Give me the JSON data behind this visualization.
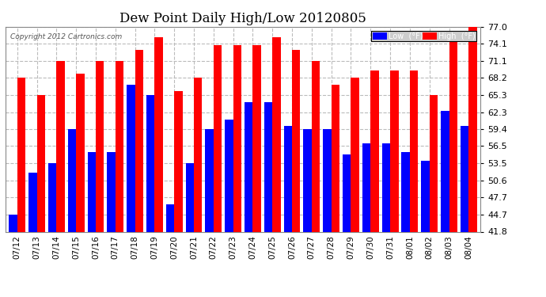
{
  "title": "Dew Point Daily High/Low 20120805",
  "copyright": "Copyright 2012 Cartronics.com",
  "dates": [
    "07/12",
    "07/13",
    "07/14",
    "07/15",
    "07/16",
    "07/17",
    "07/18",
    "07/19",
    "07/20",
    "07/21",
    "07/22",
    "07/23",
    "07/24",
    "07/25",
    "07/26",
    "07/27",
    "07/28",
    "07/29",
    "07/30",
    "07/31",
    "08/01",
    "08/02",
    "08/03",
    "08/04"
  ],
  "high": [
    68.2,
    65.3,
    71.1,
    69.0,
    71.1,
    71.1,
    73.0,
    75.2,
    66.0,
    68.2,
    73.9,
    73.9,
    73.9,
    75.2,
    73.0,
    71.1,
    67.0,
    68.2,
    69.5,
    69.5,
    69.5,
    65.3,
    75.2,
    77.0
  ],
  "low": [
    44.7,
    52.0,
    53.5,
    59.4,
    55.5,
    55.5,
    67.0,
    65.3,
    46.5,
    53.5,
    59.4,
    61.0,
    64.0,
    64.0,
    60.0,
    59.4,
    59.4,
    55.0,
    57.0,
    57.0,
    55.5,
    54.0,
    62.5,
    60.0
  ],
  "yticks": [
    41.8,
    44.7,
    47.7,
    50.6,
    53.5,
    56.5,
    59.4,
    62.3,
    65.3,
    68.2,
    71.1,
    74.1,
    77.0
  ],
  "ymin": 41.8,
  "ymax": 77.0,
  "bar_color_high": "#ff0000",
  "bar_color_low": "#0000ff",
  "bg_color": "#ffffff",
  "grid_color": "#bbbbbb",
  "title_fontsize": 12,
  "legend_label_low": "Low  (°F)",
  "legend_label_high": "High  (°F)"
}
